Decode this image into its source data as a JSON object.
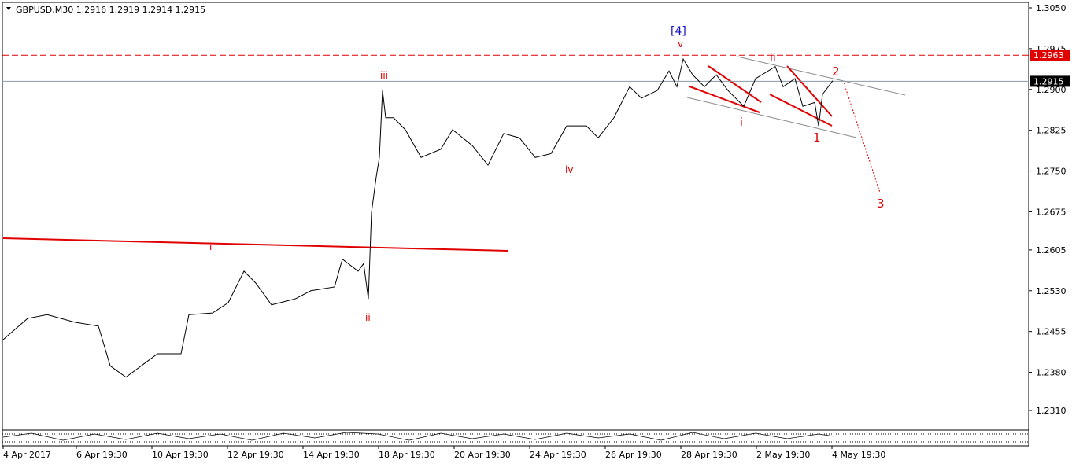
{
  "chart_data": {
    "type": "line",
    "title": "GBPUSD,M30  1.2916 1.2919 1.2914 1.2915",
    "x": [
      0,
      31,
      56,
      91,
      121,
      136,
      156,
      196,
      226,
      236,
      266,
      286,
      306,
      321,
      341,
      371,
      391,
      421,
      431,
      451,
      458,
      464,
      468,
      474,
      478,
      482,
      486,
      496,
      511,
      531,
      556,
      571,
      596,
      616,
      636,
      656,
      676,
      696,
      716,
      741,
      756,
      776,
      796,
      811,
      831,
      846,
      856,
      864,
      876,
      891,
      906,
      921,
      941,
      956,
      981,
      991,
      1006,
      1016,
      1031,
      1036,
      1041,
      1054
    ],
    "series": [
      {
        "name": "GBPUSD",
        "color": "#000000",
        "values": [
          1.244,
          1.2479,
          1.2486,
          1.2472,
          1.2465,
          1.2392,
          1.2371,
          1.2414,
          1.2414,
          1.2486,
          1.2489,
          1.2508,
          1.2566,
          1.2544,
          1.2504,
          1.2515,
          1.253,
          1.2537,
          1.2588,
          1.2566,
          1.258,
          1.2515,
          1.2674,
          1.2739,
          1.2775,
          1.2898,
          1.2848,
          1.2848,
          1.2826,
          1.2775,
          1.279,
          1.2826,
          1.2797,
          1.2761,
          1.2819,
          1.2811,
          1.2775,
          1.2782,
          1.2833,
          1.2833,
          1.2811,
          1.2848,
          1.2905,
          1.2884,
          1.2898,
          1.2934,
          1.2905,
          1.2956,
          1.2927,
          1.2905,
          1.2927,
          1.2898,
          1.2869,
          1.292,
          1.2942,
          1.2905,
          1.292,
          1.2869,
          1.2876,
          1.2833,
          1.2891,
          1.2916
        ]
      }
    ],
    "xlim": [
      0,
      1302
    ],
    "xticks": [
      {
        "value": 0,
        "label": "4 Apr 2017"
      },
      {
        "value": 93,
        "label": "6 Apr 19:30"
      },
      {
        "value": 189,
        "label": "10 Apr 19:30"
      },
      {
        "value": 285,
        "label": "12 Apr 19:30"
      },
      {
        "value": 381,
        "label": "14 Apr 19:30"
      },
      {
        "value": 477,
        "label": "18 Apr 19:30"
      },
      {
        "value": 573,
        "label": "20 Apr 19:30"
      },
      {
        "value": 669,
        "label": "24 Apr 19:30"
      },
      {
        "value": 765,
        "label": "26 Apr 19:30"
      },
      {
        "value": 861,
        "label": "28 Apr 19:30"
      },
      {
        "value": 957,
        "label": "2 May 19:30"
      },
      {
        "value": 1053,
        "label": "4 May 19:30"
      }
    ],
    "ylim": [
      1.231,
      1.305
    ],
    "yticks": [
      {
        "value": 1.305,
        "label": "1.3050"
      },
      {
        "value": 1.2975,
        "label": "1.2975"
      },
      {
        "value": 1.29,
        "label": "1.2900"
      },
      {
        "value": 1.2825,
        "label": "1.2825"
      },
      {
        "value": 1.275,
        "label": "1.2750"
      },
      {
        "value": 1.2675,
        "label": "1.2675"
      },
      {
        "value": 1.2605,
        "label": "1.2605"
      },
      {
        "value": 1.253,
        "label": "1.2530"
      },
      {
        "value": 1.2455,
        "label": "1.2455"
      },
      {
        "value": 1.238,
        "label": "1.2380"
      },
      {
        "value": 1.231,
        "label": "1.2310"
      }
    ],
    "price_lines": [
      {
        "value": 1.2963,
        "color": "#e00000",
        "style": "dashed"
      },
      {
        "value": 1.2915,
        "color": "#8a9aaa",
        "style": "solid"
      }
    ],
    "annotations": [
      "[4]",
      "v",
      "iii",
      "ii",
      "iv",
      "i",
      "i",
      "ii",
      "1",
      "2",
      "3"
    ]
  }
}
